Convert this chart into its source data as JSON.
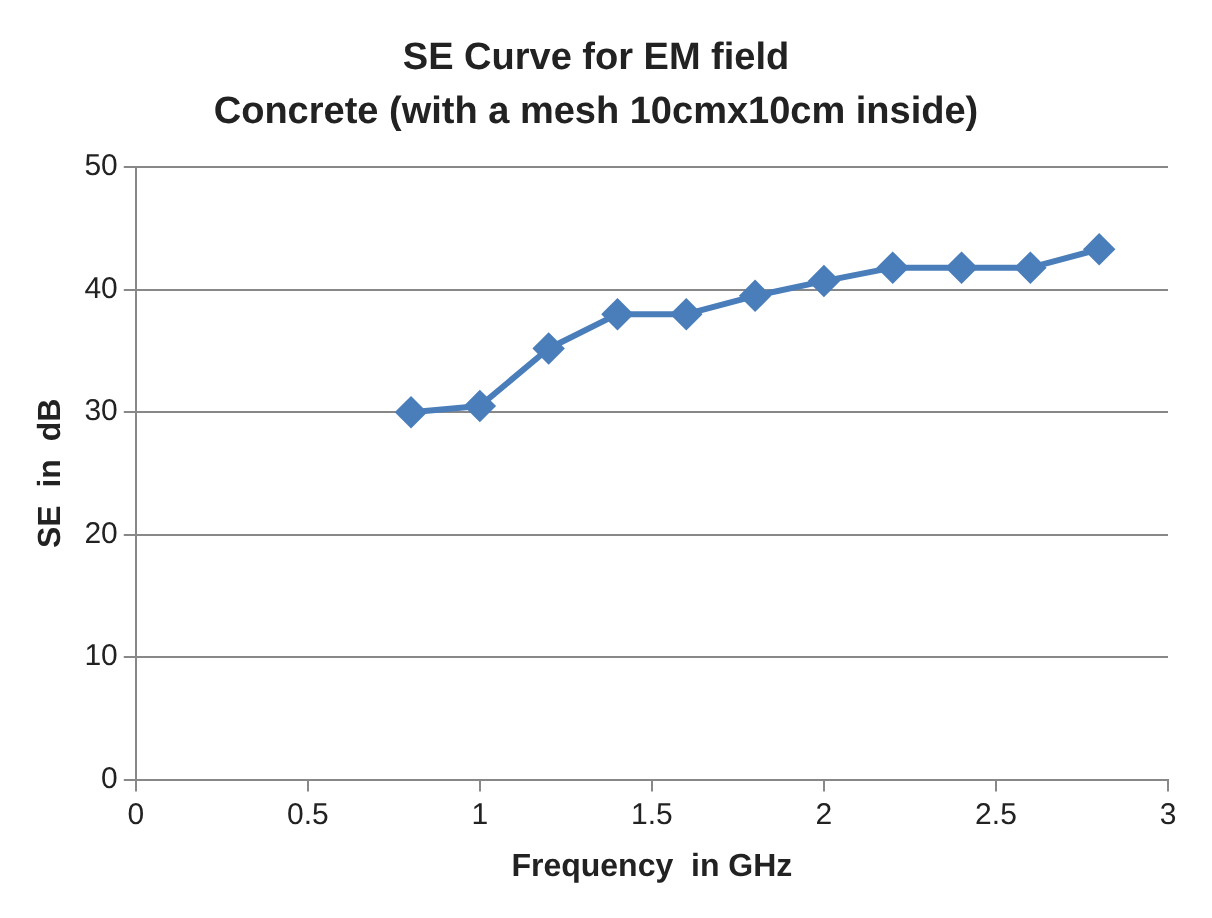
{
  "chart_data": {
    "type": "line",
    "title": "SE Curve for EM field",
    "subtitle": "Concrete (with a mesh 10cmx10cm inside)",
    "xlabel": "Frequency  in GHz",
    "ylabel": "SE  in  dB",
    "x": [
      0.8,
      1,
      1.2,
      1.4,
      1.6,
      1.8,
      2,
      2.2,
      2.4,
      2.6,
      2.8
    ],
    "series": [
      {
        "color": "#4a7ebb",
        "values": [
          30,
          30.5,
          35.2,
          38,
          38,
          39.5,
          40.7,
          41.8,
          41.8,
          41.8,
          43.3
        ]
      }
    ],
    "xlim": [
      0,
      3
    ],
    "xticks": [
      0,
      0.5,
      1,
      1.5,
      2,
      2.5,
      3
    ],
    "ylim": [
      0,
      50
    ],
    "yticks": [
      0,
      10,
      20,
      30,
      40,
      50
    ],
    "grid": "y",
    "legend": false,
    "marker": "diamond",
    "line_style": "solid"
  }
}
